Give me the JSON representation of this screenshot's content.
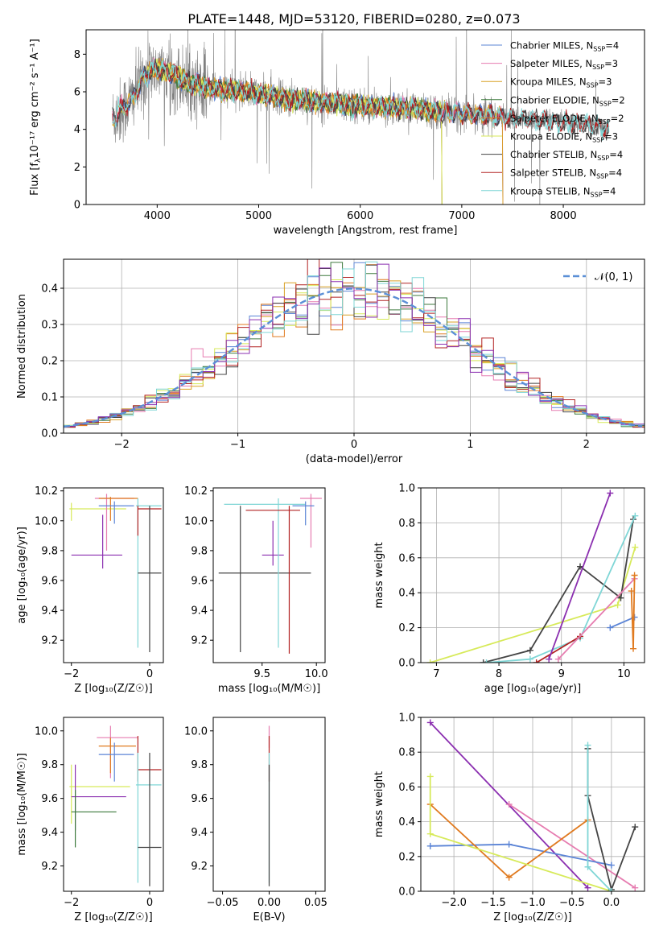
{
  "figure_title": "PLATE=1448, MJD=53120, FIBERID=0280, z=0.073",
  "colors": {
    "Chabrier MILES": "#5b84d6",
    "Salpeter MILES": "#e67cb0",
    "Kroupa MILES": "#d9a024",
    "Chabrier ELODIE": "#3d7a3d",
    "Salpeter ELODIE": "#e07a1f",
    "Kroupa ELODIE": "#d7ea5a",
    "Chabrier STELIB": "#444444",
    "Salpeter STELIB": "#b22222",
    "Kroupa STELIB": "#7fd6d6",
    "Purple": "#8b2fb0",
    "Gray": "#808080",
    "Gauss": "#5b8fd6"
  },
  "chart_data": [
    {
      "id": "spectrum",
      "type": "line",
      "xlabel": "wavelength [Angstrom, rest frame]",
      "ylabel_main": "Flux [f",
      "ylabel_sub": "λ",
      "ylabel_rest": "10⁻¹⁷ erg cm⁻² s⁻¹ A⁻¹]",
      "xlim": [
        3300,
        8800
      ],
      "ylim": [
        0,
        9.3
      ],
      "xticks": [
        4000,
        5000,
        6000,
        7000,
        8000
      ],
      "yticks": [
        0,
        2,
        4,
        6,
        8
      ],
      "legend": [
        {
          "name": "Chabrier MILES, N",
          "sub": "SSP",
          "suffix": "=4",
          "color_key": "Chabrier MILES"
        },
        {
          "name": "Salpeter MILES, N",
          "sub": "SSP",
          "suffix": "=3",
          "color_key": "Salpeter MILES"
        },
        {
          "name": "Kroupa MILES, N",
          "sub": "SSP",
          "suffix": "=3",
          "color_key": "Kroupa MILES"
        },
        {
          "name": "Chabrier ELODIE, N",
          "sub": "SSP",
          "suffix": "=2",
          "color_key": "Chabrier ELODIE"
        },
        {
          "name": "Salpeter ELODIE, N",
          "sub": "SSP",
          "suffix": "=2",
          "color_key": "Salpeter ELODIE"
        },
        {
          "name": "Kroupa ELODIE, N",
          "sub": "SSP",
          "suffix": "=3",
          "color_key": "Kroupa ELODIE"
        },
        {
          "name": "Chabrier STELIB, N",
          "sub": "SSP",
          "suffix": "=4",
          "color_key": "Chabrier STELIB"
        },
        {
          "name": "Salpeter STELIB, N",
          "sub": "SSP",
          "suffix": "=4",
          "color_key": "Salpeter STELIB"
        },
        {
          "name": "Kroupa STELIB, N",
          "sub": "SSP",
          "suffix": "=4",
          "color_key": "Kroupa STELIB"
        }
      ],
      "continuum": [
        [
          3560,
          4.6
        ],
        [
          3650,
          5.0
        ],
        [
          3750,
          5.6
        ],
        [
          3850,
          6.6
        ],
        [
          3950,
          7.2
        ],
        [
          4050,
          7.1
        ],
        [
          4150,
          7.0
        ],
        [
          4300,
          6.5
        ],
        [
          4500,
          6.2
        ],
        [
          4700,
          6.1
        ],
        [
          4900,
          6.0
        ],
        [
          5100,
          5.8
        ],
        [
          5300,
          5.6
        ],
        [
          5500,
          5.5
        ],
        [
          5700,
          5.4
        ],
        [
          5900,
          5.3
        ],
        [
          6100,
          5.25
        ],
        [
          6300,
          5.2
        ],
        [
          6500,
          5.1
        ],
        [
          6700,
          5.0
        ],
        [
          6900,
          4.9
        ],
        [
          7100,
          4.8
        ],
        [
          7300,
          4.7
        ],
        [
          7500,
          4.6
        ],
        [
          7700,
          4.5
        ],
        [
          7900,
          4.4
        ],
        [
          8100,
          4.35
        ],
        [
          8300,
          4.2
        ],
        [
          8450,
          4.0
        ]
      ]
    },
    {
      "id": "residuals",
      "type": "histogram",
      "xlabel": "(data-model)/error",
      "ylabel": "Normed distribution",
      "xlim": [
        -2.5,
        2.5
      ],
      "ylim": [
        0,
        0.48
      ],
      "xticks": [
        -2,
        -1,
        0,
        1,
        2
      ],
      "yticks": [
        0.0,
        0.1,
        0.2,
        0.3,
        0.4
      ],
      "grid": true,
      "legend_label": "𝒩(0, 1)",
      "bin_width": 0.1,
      "gaussian": {
        "mu": 0,
        "sigma": 1
      }
    },
    {
      "id": "age_vs_Z",
      "type": "errorbar",
      "xlabel": "Z [log₁₀(Z/Z☉)]",
      "ylabel": "age  [log₁₀(age/yr)]",
      "xlim": [
        -2.2,
        0.35
      ],
      "ylim": [
        9.05,
        10.22
      ],
      "xticks": [
        -2,
        0
      ],
      "yticks": [
        9.2,
        9.4,
        9.6,
        9.8,
        10.0,
        10.2
      ],
      "points": [
        {
          "x": -2.0,
          "xe": [
            -2.05,
            -0.6
          ],
          "y": 10.08,
          "ye": [
            10.0,
            10.12
          ],
          "color_key": "Kroupa ELODIE"
        },
        {
          "x": -1.2,
          "xe": [
            -2.0,
            -0.7
          ],
          "y": 9.77,
          "ye": [
            9.68,
            10.04
          ],
          "color_key": "Purple"
        },
        {
          "x": -1.1,
          "xe": [
            -1.4,
            -0.4
          ],
          "y": 10.15,
          "ye": [
            9.8,
            10.18
          ],
          "color_key": "Salpeter MILES"
        },
        {
          "x": -1.0,
          "xe": [
            -1.3,
            -0.3
          ],
          "y": 10.15,
          "ye": [
            10.0,
            10.16
          ],
          "color_key": "Salpeter ELODIE"
        },
        {
          "x": -0.9,
          "xe": [
            -1.3,
            -0.4
          ],
          "y": 10.1,
          "ye": [
            9.98,
            10.13
          ],
          "color_key": "Chabrier MILES"
        },
        {
          "x": -0.3,
          "xe": [
            -0.35,
            0.3
          ],
          "y": 10.1,
          "ye": [
            9.15,
            10.15
          ],
          "color_key": "Kroupa STELIB"
        },
        {
          "x": -0.3,
          "xe": [
            -0.3,
            0.3
          ],
          "y": 10.08,
          "ye": [
            9.9,
            10.1
          ],
          "color_key": "Salpeter STELIB"
        },
        {
          "x": 0.0,
          "xe": [
            -0.3,
            0.3
          ],
          "y": 9.65,
          "ye": [
            9.12,
            10.1
          ],
          "color_key": "Chabrier STELIB"
        }
      ]
    },
    {
      "id": "age_vs_mass",
      "type": "errorbar",
      "xlabel": "mass [log₁₀(M/M☉)]",
      "ylabel": "",
      "xlim": [
        9.05,
        10.08
      ],
      "ylim": [
        9.05,
        10.22
      ],
      "xticks": [
        9.5,
        10.0
      ],
      "yticks": [
        9.2,
        9.4,
        9.6,
        9.8,
        10.0,
        10.2
      ],
      "points": [
        {
          "x": 9.3,
          "xe": [
            9.1,
            9.95
          ],
          "y": 9.65,
          "ye": [
            9.12,
            10.1
          ],
          "color_key": "Chabrier STELIB"
        },
        {
          "x": 9.6,
          "xe": [
            9.5,
            9.7
          ],
          "y": 9.77,
          "ye": [
            9.7,
            10.0
          ],
          "color_key": "Purple"
        },
        {
          "x": 9.65,
          "xe": [
            9.15,
            9.9
          ],
          "y": 10.11,
          "ye": [
            9.15,
            10.15
          ],
          "color_key": "Kroupa STELIB"
        },
        {
          "x": 9.75,
          "xe": [
            9.35,
            9.85
          ],
          "y": 10.07,
          "ye": [
            9.11,
            10.1
          ],
          "color_key": "Salpeter STELIB"
        },
        {
          "x": 9.95,
          "xe": [
            9.85,
            10.05
          ],
          "y": 10.15,
          "ye": [
            9.82,
            10.18
          ],
          "color_key": "Salpeter MILES"
        },
        {
          "x": 9.9,
          "xe": [
            9.78,
            9.98
          ],
          "y": 10.1,
          "ye": [
            9.97,
            10.13
          ],
          "color_key": "Chabrier MILES"
        }
      ]
    },
    {
      "id": "massweight_vs_age",
      "type": "line",
      "xlabel": "age  [log₁₀(age/yr)]",
      "ylabel": "mass weight",
      "xlim": [
        6.75,
        10.33
      ],
      "ylim": [
        0,
        1.0
      ],
      "xticks": [
        7,
        8,
        9,
        10
      ],
      "yticks": [
        0.0,
        0.2,
        0.4,
        0.6,
        0.8,
        1.0
      ],
      "grid": true,
      "series": [
        {
          "color_key": "Kroupa ELODIE",
          "x": [
            6.9,
            9.9,
            10.18
          ],
          "y": [
            0.0,
            0.33,
            0.66
          ]
        },
        {
          "color_key": "Chabrier STELIB",
          "x": [
            7.75,
            8.5,
            9.3,
            9.95,
            10.15
          ],
          "y": [
            0.0,
            0.07,
            0.55,
            0.37,
            0.82
          ]
        },
        {
          "color_key": "Kroupa STELIB",
          "x": [
            7.8,
            8.5,
            9.3,
            10.18
          ],
          "y": [
            0.0,
            0.02,
            0.14,
            0.84
          ]
        },
        {
          "color_key": "Salpeter STELIB",
          "x": [
            8.6,
            9.3
          ],
          "y": [
            0.0,
            0.15
          ]
        },
        {
          "color_key": "Purple",
          "x": [
            8.8,
            9.78
          ],
          "y": [
            0.02,
            0.97
          ]
        },
        {
          "color_key": "Salpeter MILES",
          "x": [
            8.95,
            10.17
          ],
          "y": [
            0.02,
            0.48
          ]
        },
        {
          "color_key": "Chabrier MILES",
          "x": [
            9.78,
            10.17
          ],
          "y": [
            0.2,
            0.26
          ]
        },
        {
          "color_key": "Salpeter ELODIE",
          "x": [
            10.12,
            10.15,
            10.17
          ],
          "y": [
            0.41,
            0.08,
            0.5
          ]
        }
      ]
    },
    {
      "id": "mass_vs_Z",
      "type": "errorbar",
      "xlabel": "Z [log₁₀(Z/Z☉)]",
      "ylabel": "mass [log₁₀(M/M☉)]",
      "xlim": [
        -2.2,
        0.35
      ],
      "ylim": [
        9.05,
        10.08
      ],
      "xticks": [
        -2,
        0
      ],
      "yticks": [
        9.2,
        9.4,
        9.6,
        9.8,
        10.0
      ],
      "points": [
        {
          "x": -2.0,
          "xe": [
            -2.05,
            -0.5
          ],
          "y": 9.67,
          "ye": [
            9.45,
            9.8
          ],
          "color_key": "Kroupa ELODIE"
        },
        {
          "x": -1.9,
          "xe": [
            -2.0,
            -0.6
          ],
          "y": 9.61,
          "ye": [
            9.41,
            9.8
          ],
          "color_key": "Purple"
        },
        {
          "x": -1.9,
          "xe": [
            -2.0,
            -0.85
          ],
          "y": 9.52,
          "ye": [
            9.31,
            9.65
          ],
          "color_key": "Chabrier ELODIE"
        },
        {
          "x": -1.0,
          "xe": [
            -1.35,
            -0.3
          ],
          "y": 9.96,
          "ye": [
            9.72,
            10.03
          ],
          "color_key": "Salpeter MILES"
        },
        {
          "x": -1.0,
          "xe": [
            -1.3,
            -0.35
          ],
          "y": 9.91,
          "ye": [
            9.75,
            9.96
          ],
          "color_key": "Salpeter ELODIE"
        },
        {
          "x": -0.9,
          "xe": [
            -1.3,
            -0.4
          ],
          "y": 9.86,
          "ye": [
            9.7,
            9.93
          ],
          "color_key": "Chabrier MILES"
        },
        {
          "x": -0.3,
          "xe": [
            -0.3,
            0.3
          ],
          "y": 9.77,
          "ye": [
            9.7,
            9.97
          ],
          "color_key": "Salpeter STELIB"
        },
        {
          "x": -0.3,
          "xe": [
            -0.35,
            0.3
          ],
          "y": 9.68,
          "ye": [
            9.1,
            9.87
          ],
          "color_key": "Kroupa STELIB"
        },
        {
          "x": 0.0,
          "xe": [
            -0.3,
            0.3
          ],
          "y": 9.31,
          "ye": [
            9.08,
            9.87
          ],
          "color_key": "Chabrier STELIB"
        }
      ]
    },
    {
      "id": "ebv",
      "type": "errorbar",
      "xlabel": "E(B-V)",
      "ylabel": "",
      "xlim": [
        -0.06,
        0.06
      ],
      "ylim": [
        9.05,
        10.08
      ],
      "xticks": [
        -0.05,
        0.0,
        0.05
      ],
      "xticklabels": [
        "−0.05",
        "0.00",
        "0.05"
      ],
      "yticks": [
        9.2,
        9.4,
        9.6,
        9.8,
        10.0
      ],
      "points": [
        {
          "x": 0.0,
          "y": 9.96,
          "ye": [
            9.9,
            10.03
          ],
          "color_key": "Salpeter MILES"
        },
        {
          "x": 0.0,
          "y": 9.77,
          "ye": [
            9.7,
            9.97
          ],
          "color_key": "Salpeter STELIB"
        },
        {
          "x": 0.0,
          "y": 9.5,
          "ye": [
            9.1,
            9.87
          ],
          "color_key": "Kroupa STELIB"
        },
        {
          "x": 0.0,
          "y": 9.4,
          "ye": [
            9.08,
            9.8
          ],
          "color_key": "Chabrier STELIB"
        }
      ]
    },
    {
      "id": "massweight_vs_Z",
      "type": "line",
      "xlabel": "Z [log₁₀(Z/Z☉)]",
      "ylabel": "mass weight",
      "xlim": [
        -2.42,
        0.42
      ],
      "ylim": [
        0,
        1.0
      ],
      "xticks": [
        -2.0,
        -1.5,
        -1.0,
        -0.5,
        0.0
      ],
      "xticklabels": [
        "−2.0",
        "−1.5",
        "−1.0",
        "−0.5",
        "0.0"
      ],
      "yticks": [
        0.0,
        0.2,
        0.4,
        0.6,
        0.8,
        1.0
      ],
      "grid": true,
      "series": [
        {
          "color_key": "Purple",
          "x": [
            -2.3,
            -0.3
          ],
          "y": [
            0.97,
            0.02
          ]
        },
        {
          "color_key": "Salpeter MILES",
          "x": [
            -1.3,
            0.3
          ],
          "y": [
            0.5,
            0.02
          ]
        },
        {
          "color_key": "Chabrier MILES",
          "x": [
            -2.3,
            -1.3,
            0.0
          ],
          "y": [
            0.26,
            0.27,
            0.15
          ]
        },
        {
          "color_key": "Salpeter ELODIE",
          "x": [
            -2.3,
            -1.3,
            -0.3
          ],
          "y": [
            0.5,
            0.08,
            0.41
          ]
        },
        {
          "color_key": "Kroupa ELODIE",
          "x": [
            -2.3,
            -2.3,
            0.0
          ],
          "y": [
            0.66,
            0.33,
            0.0
          ]
        },
        {
          "color_key": "Chabrier STELIB",
          "x": [
            -0.3,
            -0.3,
            0.0,
            0.3
          ],
          "y": [
            0.82,
            0.55,
            0.01,
            0.37
          ]
        },
        {
          "color_key": "Kroupa STELIB",
          "x": [
            -0.3,
            -0.3,
            0.0
          ],
          "y": [
            0.84,
            0.14,
            0.0
          ]
        }
      ]
    }
  ]
}
